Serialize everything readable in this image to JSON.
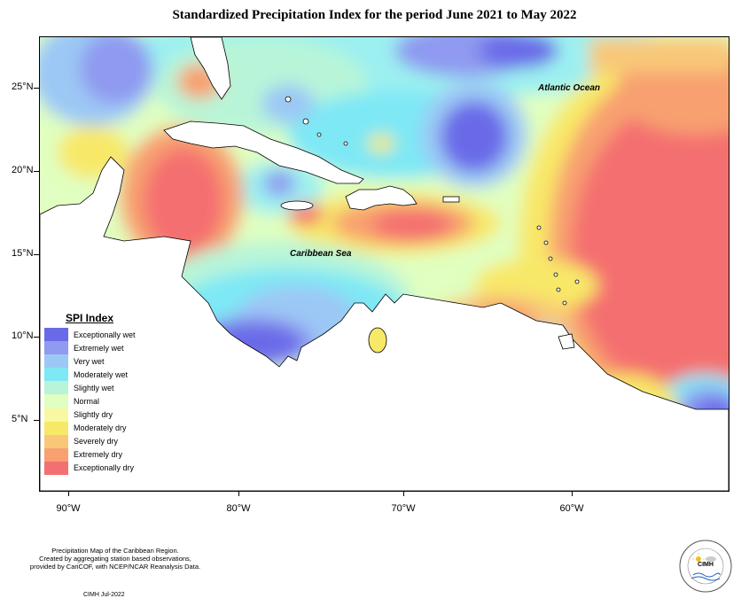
{
  "title": "Standardized Precipitation Index for the period June 2021 to May 2022",
  "map": {
    "labels": {
      "atlantic": "Atlantic Ocean",
      "caribbean": "Caribbean Sea"
    },
    "lat_ticks": [
      "25°N",
      "20°N",
      "15°N",
      "10°N",
      "5°N"
    ],
    "lon_ticks": [
      "90°W",
      "80°W",
      "70°W",
      "60°W"
    ]
  },
  "legend": {
    "title": "SPI Index",
    "items": [
      {
        "label": "Exceptionally wet",
        "color": "#6a6ae8"
      },
      {
        "label": "Extremely wet",
        "color": "#8f9af0"
      },
      {
        "label": "Very wet",
        "color": "#9cc8f5"
      },
      {
        "label": "Moderately wet",
        "color": "#7ee8f5"
      },
      {
        "label": "Slightly wet",
        "color": "#b8f5d8"
      },
      {
        "label": "Normal",
        "color": "#e0ffc0"
      },
      {
        "label": "Slightly dry",
        "color": "#f8f8a0"
      },
      {
        "label": "Moderately dry",
        "color": "#f8e868"
      },
      {
        "label": "Severely dry",
        "color": "#f8c878"
      },
      {
        "label": "Extremely dry",
        "color": "#f8a070"
      },
      {
        "label": "Exceptionally dry",
        "color": "#f47070"
      }
    ]
  },
  "footer": {
    "description_lines": [
      "Precipitation Map of the Caribbean Region.",
      "Created by aggregating station based observations,",
      "provided by CariCOF, with NCEP/NCAR Reanalysis Data."
    ],
    "date": "CIMH Jul-2022"
  },
  "logo": {
    "text": "CIMH"
  }
}
